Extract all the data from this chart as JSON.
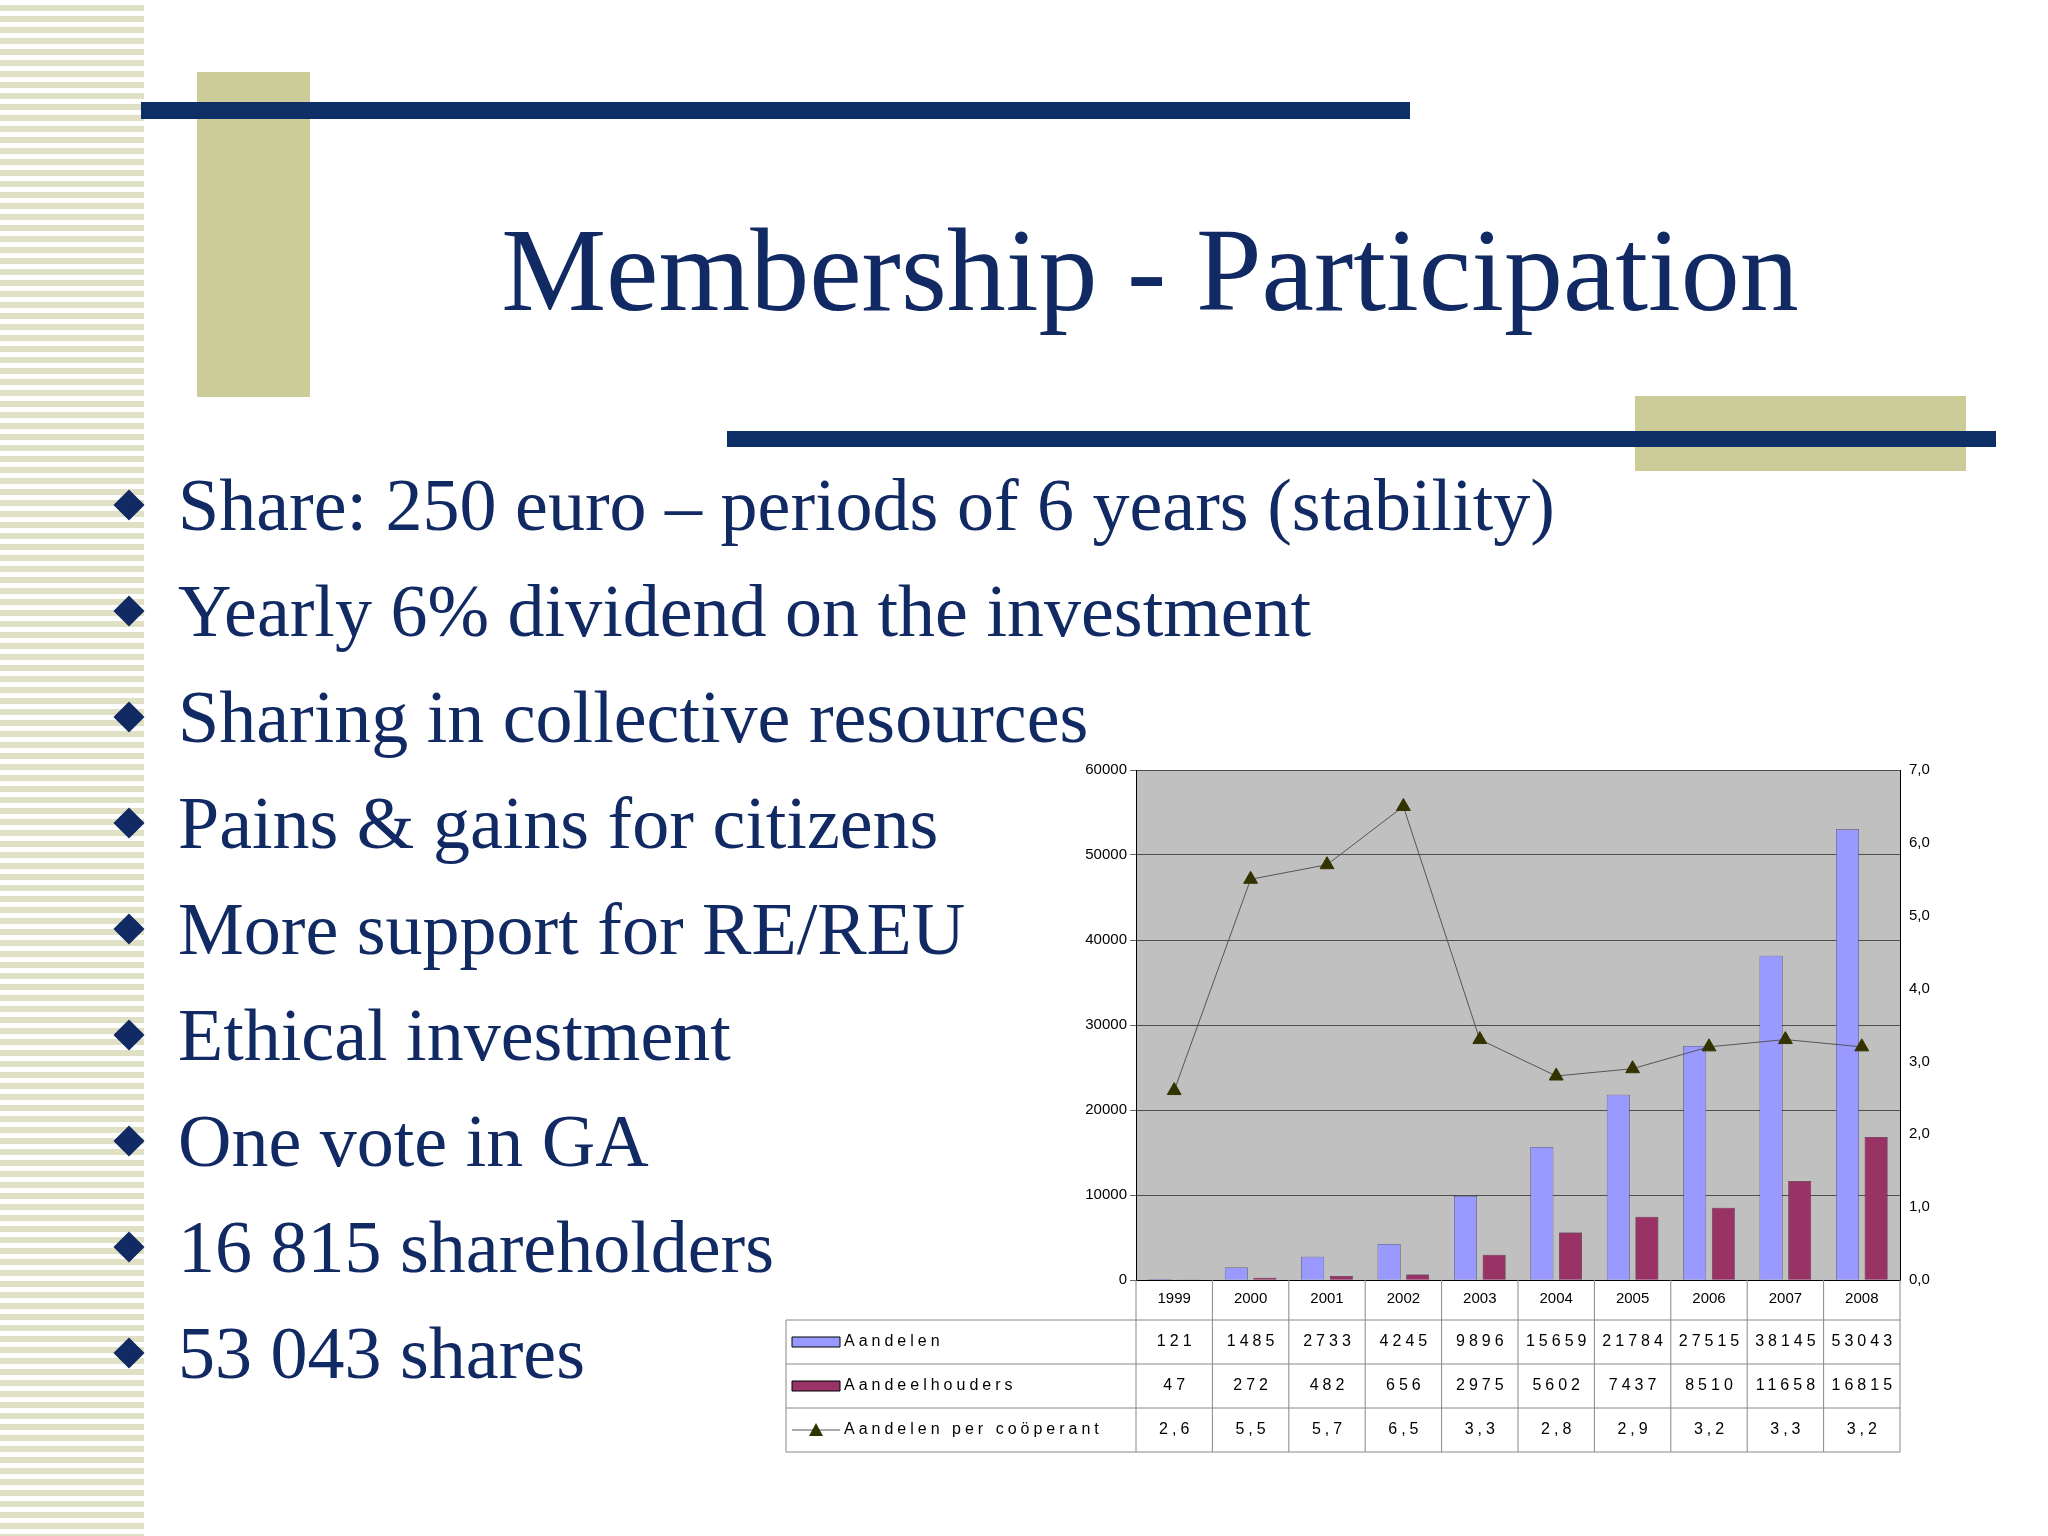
{
  "chart_data": {
    "type": "bar",
    "title": "Membership - Participation",
    "annotations": [
      "Share: 250 euro – periods of 6 years (stability)",
      "Yearly 6% dividend on the investment",
      "Sharing in collective resources",
      "Pains & gains for citizens",
      "More support for RE/REU",
      "Ethical investment",
      "One vote in GA",
      "16 815 shareholders",
      "53 043 shares"
    ],
    "categories": [
      "1999",
      "2000",
      "2001",
      "2002",
      "2003",
      "2004",
      "2005",
      "2006",
      "2007",
      "2008"
    ],
    "series": [
      {
        "name": "Aandelen",
        "color": "#9999ff",
        "values": [
          121,
          1485,
          2733,
          4245,
          9896,
          15659,
          21784,
          27515,
          38145,
          53043
        ]
      },
      {
        "name": "Aandeelhouders",
        "color": "#993366",
        "values": [
          47,
          272,
          482,
          656,
          2975,
          5602,
          7437,
          8510,
          11658,
          16815
        ]
      },
      {
        "name": "Aandelen per coöperant",
        "type": "line",
        "axis": "y2",
        "color": "#333300",
        "marker": "triangle",
        "values": [
          2.6,
          5.5,
          5.7,
          6.5,
          3.3,
          2.8,
          2.9,
          3.2,
          3.3,
          3.2
        ],
        "value_labels": [
          "2,6",
          "5,5",
          "5,7",
          "6,5",
          "3,3",
          "2,8",
          "2,9",
          "3,2",
          "3,3",
          "3,2"
        ]
      }
    ],
    "data_labels": true,
    "ylim": [
      0,
      60000
    ],
    "yticks": [
      0,
      10000,
      20000,
      30000,
      40000,
      50000,
      60000
    ],
    "y2lim": [
      0,
      7
    ],
    "y2ticks": [
      {
        "value": 0,
        "label": "0,0"
      },
      {
        "value": 1,
        "label": "1,0"
      },
      {
        "value": 2,
        "label": "2,0"
      },
      {
        "value": 3,
        "label": "3,0"
      },
      {
        "value": 4,
        "label": "4,0"
      },
      {
        "value": 5,
        "label": "5,0"
      },
      {
        "value": 6,
        "label": "6,0"
      },
      {
        "value": 7,
        "label": "7,0"
      }
    ],
    "grid": "y",
    "legend": "bottom left"
  }
}
